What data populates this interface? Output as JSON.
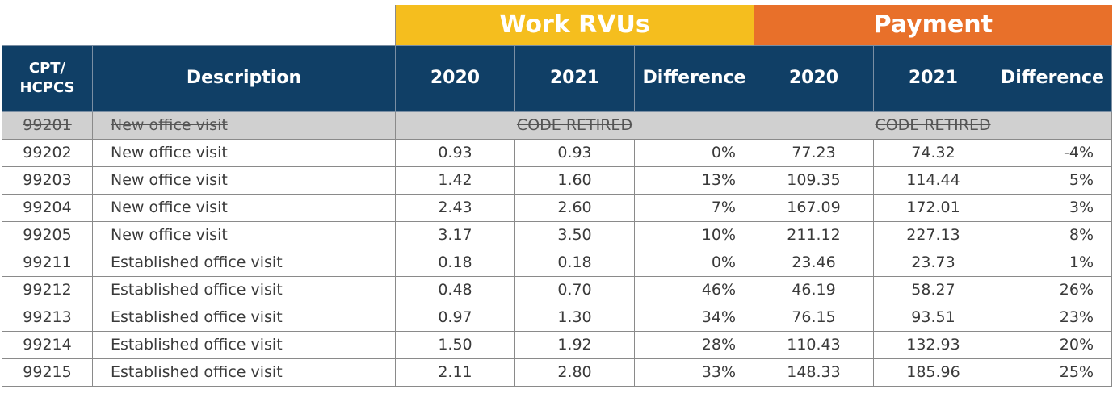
{
  "chart_data": {
    "type": "table",
    "group_headers": {
      "work_rvus": "Work RVUs",
      "payment": "Payment"
    },
    "columns": {
      "code": "CPT/\nHCPCS",
      "code_line1": "CPT/",
      "code_line2": "HCPCS",
      "description": "Description",
      "rvu_2020": "2020",
      "rvu_2021": "2021",
      "rvu_diff": "Difference",
      "pay_2020": "2020",
      "pay_2021": "2021",
      "pay_diff": "Difference"
    },
    "retired_row": {
      "code": "99201",
      "description": "New office visit",
      "rvu_note": "CODE RETIRED",
      "pay_note": "CODE RETIRED"
    },
    "rows": [
      {
        "code": "99202",
        "description": "New office visit",
        "rvu_2020": "0.93",
        "rvu_2021": "0.93",
        "rvu_diff": "0%",
        "pay_2020": "77.23",
        "pay_2021": "74.32",
        "pay_diff": "-4%"
      },
      {
        "code": "99203",
        "description": "New office visit",
        "rvu_2020": "1.42",
        "rvu_2021": "1.60",
        "rvu_diff": "13%",
        "pay_2020": "109.35",
        "pay_2021": "114.44",
        "pay_diff": "5%"
      },
      {
        "code": "99204",
        "description": "New office visit",
        "rvu_2020": "2.43",
        "rvu_2021": "2.60",
        "rvu_diff": "7%",
        "pay_2020": "167.09",
        "pay_2021": "172.01",
        "pay_diff": "3%"
      },
      {
        "code": "99205",
        "description": "New office visit",
        "rvu_2020": "3.17",
        "rvu_2021": "3.50",
        "rvu_diff": "10%",
        "pay_2020": "211.12",
        "pay_2021": "227.13",
        "pay_diff": "8%"
      },
      {
        "code": "99211",
        "description": "Established office visit",
        "rvu_2020": "0.18",
        "rvu_2021": "0.18",
        "rvu_diff": "0%",
        "pay_2020": "23.46",
        "pay_2021": "23.73",
        "pay_diff": "1%"
      },
      {
        "code": "99212",
        "description": "Established office visit",
        "rvu_2020": "0.48",
        "rvu_2021": "0.70",
        "rvu_diff": "46%",
        "pay_2020": "46.19",
        "pay_2021": "58.27",
        "pay_diff": "26%"
      },
      {
        "code": "99213",
        "description": "Established office visit",
        "rvu_2020": "0.97",
        "rvu_2021": "1.30",
        "rvu_diff": "34%",
        "pay_2020": "76.15",
        "pay_2021": "93.51",
        "pay_diff": "23%"
      },
      {
        "code": "99214",
        "description": "Established office visit",
        "rvu_2020": "1.50",
        "rvu_2021": "1.92",
        "rvu_diff": "28%",
        "pay_2020": "110.43",
        "pay_2021": "132.93",
        "pay_diff": "20%"
      },
      {
        "code": "99215",
        "description": "Established office visit",
        "rvu_2020": "2.11",
        "rvu_2021": "2.80",
        "rvu_diff": "33%",
        "pay_2020": "148.33",
        "pay_2021": "185.96",
        "pay_diff": "25%"
      }
    ],
    "colors": {
      "work_rvus": "#f5be1e",
      "payment": "#e8702a",
      "header": "#103f66",
      "retired": "#d0d0d0"
    }
  }
}
